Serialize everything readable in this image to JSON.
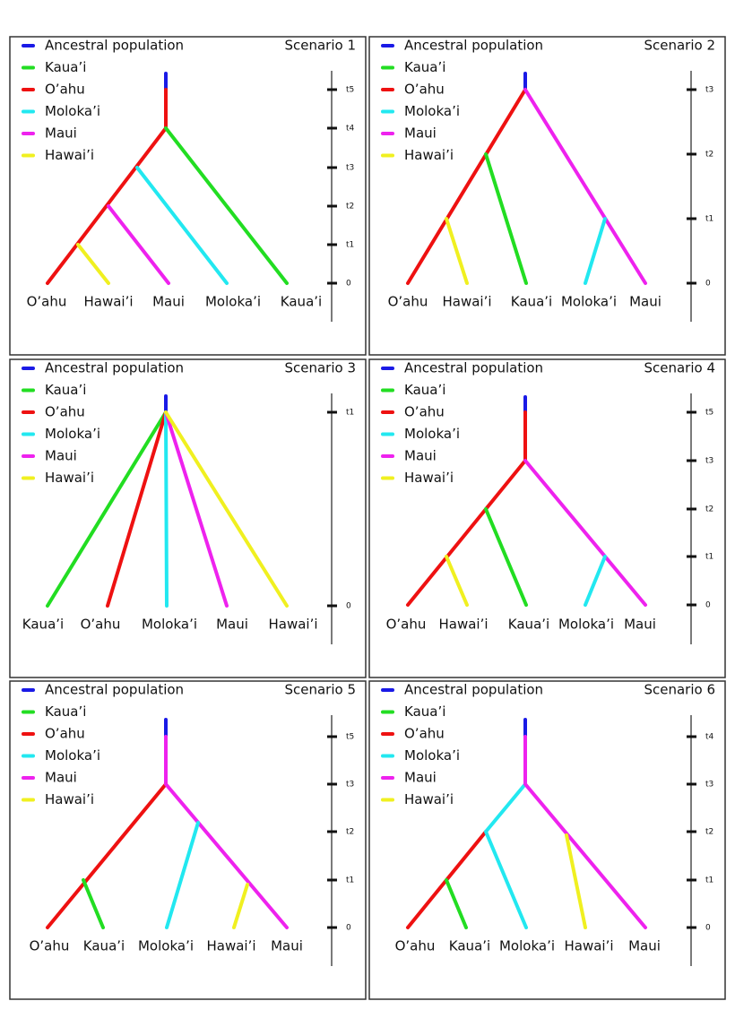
{
  "panels": [
    {
      "title": "Scenario 1",
      "legend": [
        {
          "label": "Ancestral population",
          "color": "#1a1ae6"
        },
        {
          "label": "Kaua’i",
          "color": "#22dd22"
        },
        {
          "label": "O’ahu",
          "color": "#ee1111"
        },
        {
          "label": "Moloka’i",
          "color": "#22e8f0"
        },
        {
          "label": "Maui",
          "color": "#ee22ee"
        },
        {
          "label": "Hawai’i",
          "color": "#f0f020"
        }
      ],
      "leaves": [
        "O’ahu",
        "Hawai’i",
        "Maui",
        "Moloka’i",
        "Kaua’i"
      ],
      "time_ticks": [
        "t5",
        "t4",
        "t3",
        "t2",
        "t1",
        "0"
      ]
    },
    {
      "title": "Scenario 2",
      "legend": [
        {
          "label": "Ancestral population",
          "color": "#1a1ae6"
        },
        {
          "label": "Kaua’i",
          "color": "#22dd22"
        },
        {
          "label": "O’ahu",
          "color": "#ee1111"
        },
        {
          "label": "Moloka’i",
          "color": "#22e8f0"
        },
        {
          "label": "Maui",
          "color": "#ee22ee"
        },
        {
          "label": "Hawai’i",
          "color": "#f0f020"
        }
      ],
      "leaves": [
        "O’ahu",
        "Hawai’i",
        "Kaua’i",
        "Moloka’i",
        "Maui"
      ],
      "time_ticks": [
        "t3",
        "t2",
        "t1",
        "0"
      ]
    },
    {
      "title": "Scenario 3",
      "legend": [
        {
          "label": "Ancestral population",
          "color": "#1a1ae6"
        },
        {
          "label": "Kaua’i",
          "color": "#22dd22"
        },
        {
          "label": "O’ahu",
          "color": "#ee1111"
        },
        {
          "label": "Moloka’i",
          "color": "#22e8f0"
        },
        {
          "label": "Maui",
          "color": "#ee22ee"
        },
        {
          "label": "Hawai’i",
          "color": "#f0f020"
        }
      ],
      "leaves": [
        "Kaua’i",
        "O’ahu",
        "Moloka’i",
        "Maui",
        "Hawai’i"
      ],
      "time_ticks": [
        "t1",
        "0"
      ]
    },
    {
      "title": "Scenario 4",
      "legend": [
        {
          "label": "Ancestral population",
          "color": "#1a1ae6"
        },
        {
          "label": "Kaua’i",
          "color": "#22dd22"
        },
        {
          "label": "O’ahu",
          "color": "#ee1111"
        },
        {
          "label": "Moloka’i",
          "color": "#22e8f0"
        },
        {
          "label": "Maui",
          "color": "#ee22ee"
        },
        {
          "label": "Hawai’i",
          "color": "#f0f020"
        }
      ],
      "leaves": [
        "O’ahu",
        "Hawai’i",
        "Kaua’i",
        "Moloka’i",
        "Maui"
      ],
      "time_ticks": [
        "t5",
        "t3",
        "t2",
        "t1",
        "0"
      ]
    },
    {
      "title": "Scenario 5",
      "legend": [
        {
          "label": "Ancestral population",
          "color": "#1a1ae6"
        },
        {
          "label": "Kaua’i",
          "color": "#22dd22"
        },
        {
          "label": "O’ahu",
          "color": "#ee1111"
        },
        {
          "label": "Moloka’i",
          "color": "#22e8f0"
        },
        {
          "label": "Maui",
          "color": "#ee22ee"
        },
        {
          "label": "Hawai’i",
          "color": "#f0f020"
        }
      ],
      "leaves": [
        "O’ahu",
        "Kaua’i",
        "Moloka’i",
        "Hawai’i",
        "Maui"
      ],
      "time_ticks": [
        "t5",
        "t3",
        "t2",
        "t1",
        "0"
      ]
    },
    {
      "title": "Scenario 6",
      "legend": [
        {
          "label": "Ancestral population",
          "color": "#1a1ae6"
        },
        {
          "label": "Kaua’i",
          "color": "#22dd22"
        },
        {
          "label": "O’ahu",
          "color": "#ee1111"
        },
        {
          "label": "Moloka’i",
          "color": "#22e8f0"
        },
        {
          "label": "Maui",
          "color": "#ee22ee"
        },
        {
          "label": "Hawai’i",
          "color": "#f0f020"
        }
      ],
      "leaves": [
        "O’ahu",
        "Kaua’i",
        "Moloka’i",
        "Hawai’i",
        "Maui"
      ],
      "time_ticks": [
        "t4",
        "t3",
        "t2",
        "t1",
        "0"
      ]
    }
  ]
}
